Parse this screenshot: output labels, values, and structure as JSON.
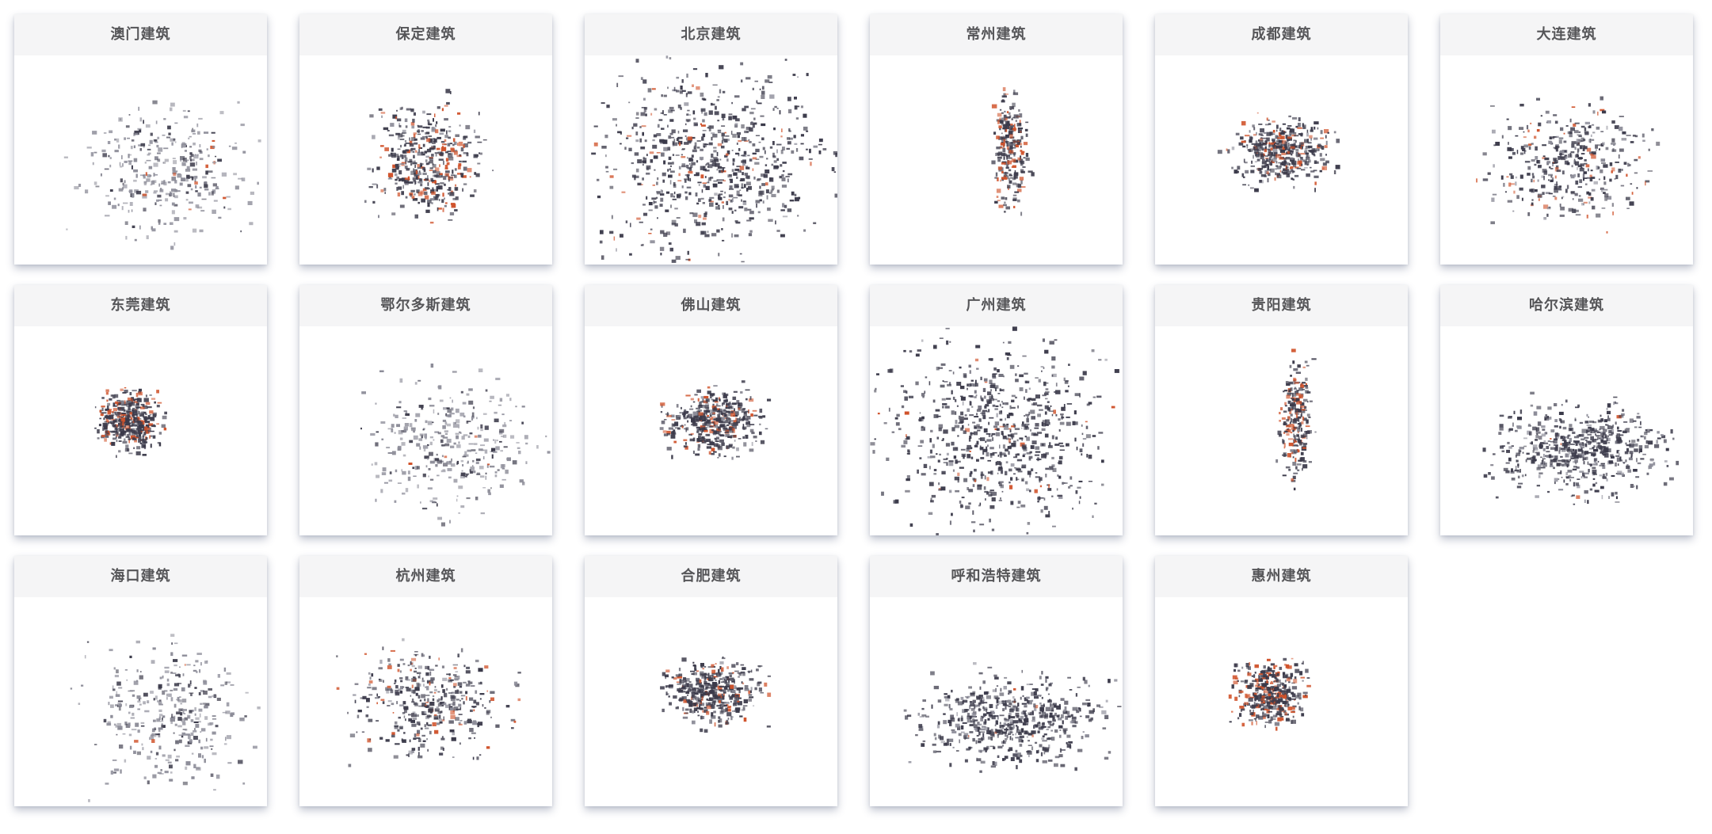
{
  "colors": {
    "building": "#3b3a4a",
    "building_light": "#8c8c98",
    "highlight": "#d0522a",
    "title_bg": "#f5f5f6",
    "title_text": "#555558"
  },
  "cards": [
    {
      "title": "澳门建筑",
      "style": "light"
    },
    {
      "title": "保定建筑",
      "style": "grid"
    },
    {
      "title": "北京建筑",
      "style": "dense"
    },
    {
      "title": "常州建筑",
      "style": "strip"
    },
    {
      "title": "成都建筑",
      "style": "radial"
    },
    {
      "title": "大连建筑",
      "style": "coast"
    },
    {
      "title": "东莞建筑",
      "style": "block"
    },
    {
      "title": "鄂尔多斯建筑",
      "style": "light"
    },
    {
      "title": "佛山建筑",
      "style": "radial"
    },
    {
      "title": "广州建筑",
      "style": "dense"
    },
    {
      "title": "贵阳建筑",
      "style": "strip"
    },
    {
      "title": "哈尔滨建筑",
      "style": "wide"
    },
    {
      "title": "海口建筑",
      "style": "light"
    },
    {
      "title": "杭州建筑",
      "style": "coast"
    },
    {
      "title": "合肥建筑",
      "style": "radial"
    },
    {
      "title": "呼和浩特建筑",
      "style": "wide"
    },
    {
      "title": "惠州建筑",
      "style": "block"
    }
  ]
}
